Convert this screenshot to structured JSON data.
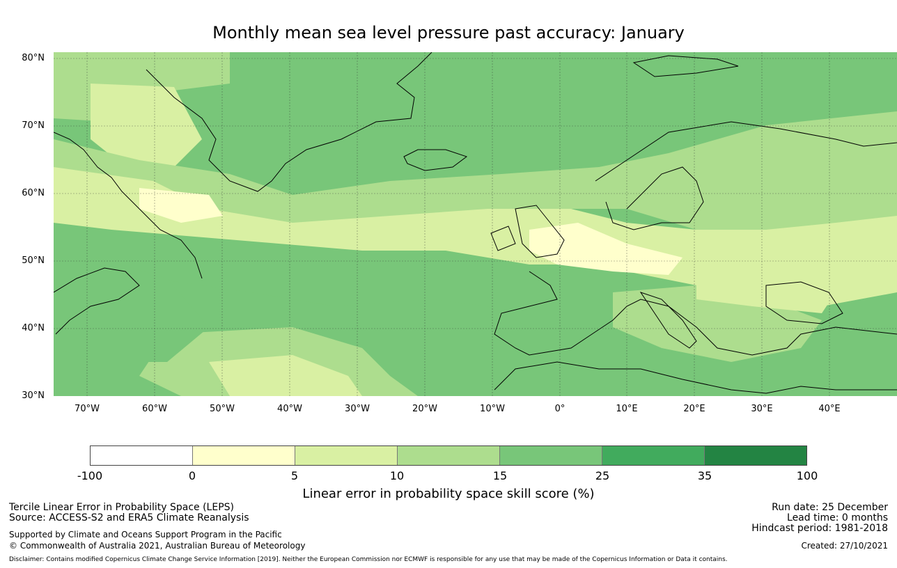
{
  "title": "Monthly mean sea level pressure past accuracy: January",
  "map": {
    "lat_labels": [
      "80°N",
      "70°N",
      "60°N",
      "50°N",
      "40°N",
      "30°N"
    ],
    "lon_labels": [
      "70°W",
      "60°W",
      "50°W",
      "40°W",
      "30°W",
      "20°W",
      "10°W",
      "0°",
      "10°E",
      "20°E",
      "30°E",
      "40°E"
    ]
  },
  "colorbar": {
    "ticks": [
      "-100",
      "0",
      "5",
      "10",
      "15",
      "25",
      "35",
      "100"
    ],
    "colors": [
      "#ffffff",
      "#ffffcc",
      "#d9f0a3",
      "#addd8e",
      "#78c679",
      "#41ab5d",
      "#238443"
    ],
    "label": "Linear error in probability space skill score (%)"
  },
  "footer": {
    "left": {
      "line1": "Tercile Linear Error in Probability Space (LEPS)",
      "line2": "Source: ACCESS-S2 and ERA5 Climate Reanalysis",
      "line3": "Supported by Climate and Oceans Support Program in the Pacific",
      "line4": "© Commonwealth of Australia 2021, Australian Bureau of Meteorology"
    },
    "right": {
      "run_date": "Run date: 25 December",
      "lead_time": "Lead time: 0 months",
      "hindcast": "Hindcast period: 1981-2018",
      "created": "Created: 27/10/2021"
    },
    "disclaimer": "Disclaimer: Contains modified Copernicus Climate Change Service Information [2019]. Neither the European Commission nor ECMWF is responsible for any use that may be made of the Copernicus Information or Data it contains."
  }
}
